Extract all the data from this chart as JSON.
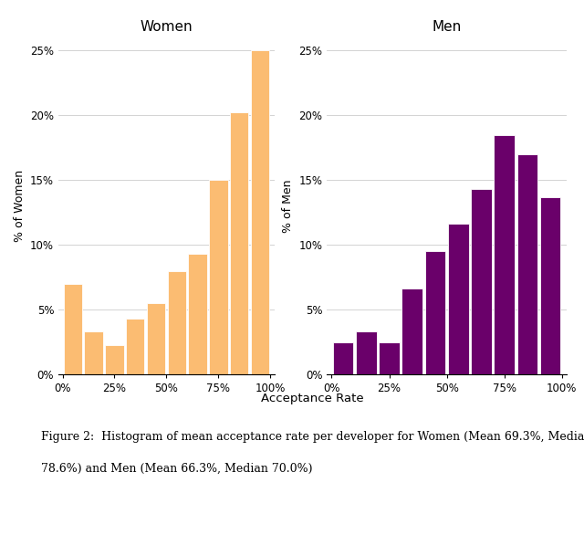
{
  "women_values": [
    7.0,
    3.3,
    2.3,
    4.3,
    5.5,
    8.0,
    9.3,
    15.0,
    20.2,
    25.0
  ],
  "men_values": [
    2.5,
    3.3,
    2.5,
    6.6,
    9.5,
    11.6,
    14.3,
    18.5,
    17.0,
    13.7
  ],
  "bin_edges": [
    0,
    10,
    20,
    30,
    40,
    50,
    60,
    70,
    80,
    90,
    100
  ],
  "women_color": "#FBBC72",
  "men_color": "#6A006A",
  "women_title": "Women",
  "men_title": "Men",
  "women_ylabel": "% of Women",
  "men_ylabel": "% of Men",
  "xlabel": "Acceptance Rate",
  "ylim": [
    0,
    26
  ],
  "yticks": [
    0,
    5,
    10,
    15,
    20,
    25
  ],
  "xtick_labels": [
    "0%",
    "25%",
    "50%",
    "75%",
    "100%"
  ],
  "xtick_positions": [
    0,
    25,
    50,
    75,
    100
  ],
  "caption_line1": "Figure 2:  Histogram of mean acceptance rate per developer for Women (Mean 69.3%, Median",
  "caption_line2": "78.6%) and Men (Mean 66.3%, Median 70.0%)",
  "background_color": "#ffffff",
  "grid_color": "#cccccc"
}
